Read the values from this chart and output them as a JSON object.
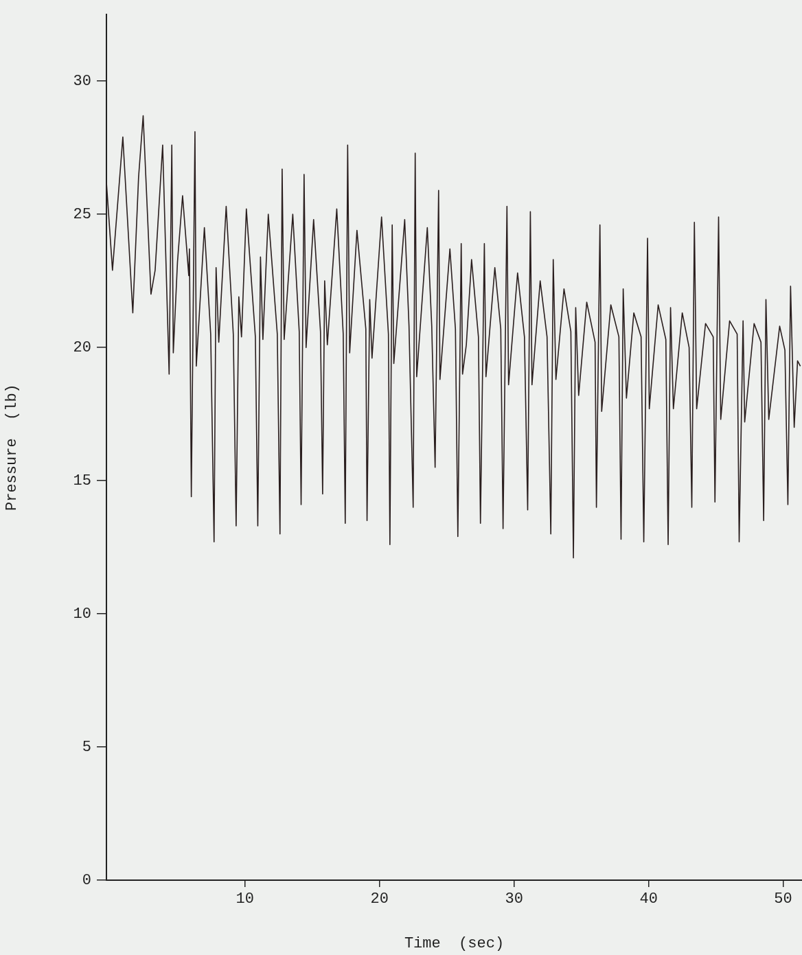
{
  "chart_data": {
    "type": "line",
    "xlabel": "Time  (sec)",
    "ylabel": "Pressure  (lb)",
    "xlim": [
      -0.3,
      51.4
    ],
    "xticks": [
      10,
      20,
      30,
      40,
      50
    ],
    "ylim": [
      0,
      32.5
    ],
    "yticks": [
      0,
      5,
      10,
      15,
      20,
      25,
      30
    ],
    "marker": "none",
    "color": "#2a1e1e",
    "x": [
      -0.3,
      0.15,
      0.92,
      1.66,
      2.09,
      2.43,
      3.01,
      3.32,
      3.88,
      4.36,
      4.56,
      4.67,
      4.98,
      5.36,
      5.82,
      5.87,
      6.01,
      6.28,
      6.38,
      6.98,
      7.45,
      7.7,
      7.85,
      8.05,
      8.6,
      9.13,
      9.34,
      9.54,
      9.74,
      10.1,
      10.77,
      10.95,
      11.15,
      11.33,
      11.73,
      12.4,
      12.6,
      12.76,
      12.91,
      13.55,
      14.03,
      14.17,
      14.39,
      14.54,
      15.1,
      15.61,
      15.77,
      15.92,
      16.12,
      16.82,
      17.3,
      17.45,
      17.63,
      17.78,
      18.32,
      18.98,
      19.07,
      19.27,
      19.44,
      20.15,
      20.66,
      20.77,
      20.94,
      21.06,
      21.87,
      22.19,
      22.5,
      22.65,
      22.76,
      23.55,
      23.88,
      24.13,
      24.39,
      24.49,
      25.23,
      25.64,
      25.82,
      26.07,
      26.17,
      26.45,
      26.84,
      27.35,
      27.5,
      27.79,
      27.91,
      28.57,
      29.01,
      29.18,
      29.47,
      29.59,
      30.26,
      30.77,
      31.01,
      31.21,
      31.33,
      31.94,
      32.45,
      32.73,
      32.91,
      33.11,
      33.71,
      34.22,
      34.41,
      34.58,
      34.8,
      35.4,
      36.02,
      36.12,
      36.38,
      36.51,
      37.19,
      37.79,
      37.95,
      38.11,
      38.35,
      38.9,
      39.44,
      39.64,
      39.92,
      40.05,
      40.71,
      41.28,
      41.45,
      41.63,
      41.84,
      42.5,
      43.01,
      43.21,
      43.4,
      43.57,
      44.23,
      44.8,
      44.93,
      45.2,
      45.36,
      46.02,
      46.58,
      46.73,
      47.02,
      47.14,
      47.84,
      48.35,
      48.55,
      48.72,
      48.93,
      49.74,
      50.13,
      50.35,
      50.55,
      50.82,
      51.07,
      51.28
    ],
    "values": [
      26.2,
      22.9,
      27.9,
      21.3,
      26.4,
      28.7,
      22.0,
      22.9,
      27.6,
      19.0,
      27.6,
      19.8,
      23.2,
      25.7,
      22.7,
      23.7,
      14.4,
      28.1,
      19.3,
      24.5,
      20.5,
      12.7,
      23.0,
      20.2,
      25.3,
      20.5,
      13.3,
      21.9,
      20.4,
      25.2,
      20.4,
      13.3,
      23.4,
      20.3,
      25.0,
      20.5,
      13.0,
      26.7,
      20.3,
      25.0,
      20.6,
      14.1,
      26.5,
      20.0,
      24.8,
      20.6,
      14.5,
      22.5,
      20.1,
      25.2,
      20.5,
      13.4,
      27.6,
      19.8,
      24.4,
      20.7,
      13.5,
      21.8,
      19.6,
      24.9,
      20.5,
      12.6,
      24.6,
      19.4,
      24.8,
      20.8,
      14.0,
      27.3,
      18.9,
      24.5,
      20.8,
      15.5,
      25.9,
      18.8,
      23.7,
      20.7,
      12.9,
      23.9,
      19.0,
      20.1,
      23.3,
      20.4,
      13.4,
      23.9,
      18.9,
      23.0,
      20.7,
      13.2,
      25.3,
      18.6,
      22.8,
      20.4,
      13.9,
      25.1,
      18.6,
      22.5,
      20.4,
      13.0,
      23.3,
      18.8,
      22.2,
      20.6,
      12.1,
      21.5,
      18.2,
      21.7,
      20.2,
      14.0,
      24.6,
      17.6,
      21.6,
      20.4,
      12.8,
      22.2,
      18.1,
      21.3,
      20.4,
      12.7,
      24.1,
      17.7,
      21.6,
      20.3,
      12.6,
      21.5,
      17.7,
      21.3,
      20.0,
      14.0,
      24.7,
      17.7,
      20.9,
      20.4,
      14.2,
      24.9,
      17.3,
      21.0,
      20.5,
      12.7,
      21.0,
      17.2,
      20.9,
      20.2,
      13.5,
      21.8,
      17.3,
      20.8,
      19.9,
      14.1,
      22.3,
      17.0,
      19.5,
      19.3
    ]
  }
}
